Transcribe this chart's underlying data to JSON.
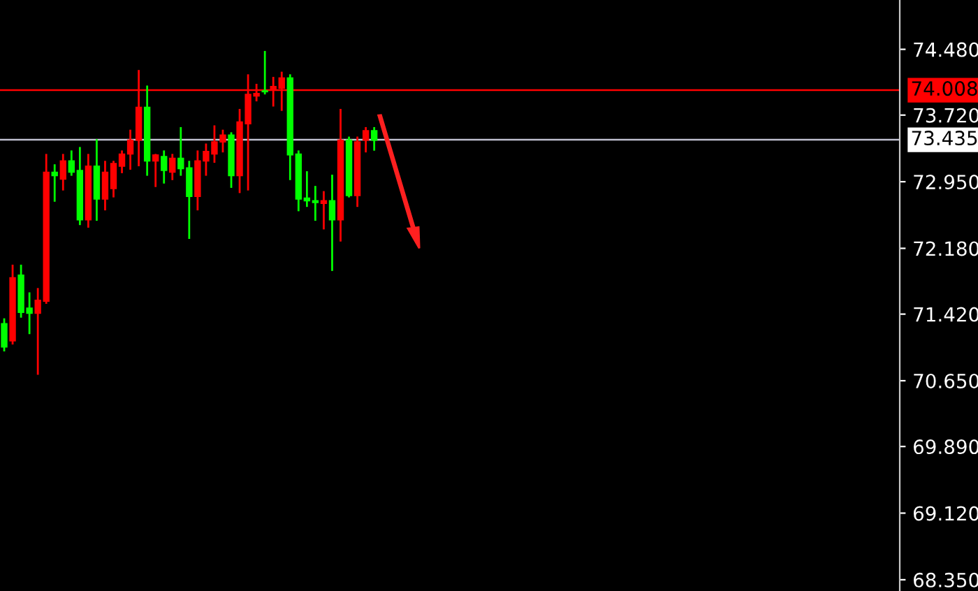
{
  "chart_data": {
    "type": "candlestick",
    "categories": [
      null,
      null,
      null,
      null,
      null,
      null,
      null,
      null,
      null,
      null,
      null,
      null,
      null,
      null,
      null,
      null,
      null,
      null,
      null,
      null,
      null,
      null,
      null,
      null,
      null,
      null,
      null,
      null,
      null,
      null,
      null,
      null,
      null,
      null,
      null,
      null,
      null,
      null,
      null,
      null,
      null,
      null,
      null,
      null,
      null,
      null,
      null,
      null,
      null,
      null,
      null,
      null,
      null,
      null,
      null,
      null,
      null,
      null,
      null,
      null,
      null,
      null,
      null,
      null,
      null,
      null,
      null,
      null,
      null,
      null,
      null,
      null,
      null,
      null,
      null,
      null,
      null,
      null,
      null,
      null,
      null,
      null,
      null,
      null,
      null,
      null,
      null,
      null,
      null,
      null,
      null,
      null,
      null,
      null,
      null,
      null,
      null,
      null,
      null,
      null,
      null,
      null,
      null,
      null,
      null,
      null,
      null
    ],
    "ohlc": [
      [
        71.31,
        71.36,
        71.0,
        71.04
      ],
      [
        71.11,
        71.98,
        71.08,
        71.84
      ],
      [
        71.87,
        71.98,
        71.39,
        71.44
      ],
      [
        71.49,
        71.66,
        71.2,
        71.43
      ],
      [
        71.43,
        71.71,
        70.73,
        71.58
      ],
      [
        71.57,
        73.26,
        71.55,
        73.06
      ],
      [
        73.06,
        73.14,
        72.73,
        73.02
      ],
      [
        72.98,
        73.26,
        72.86,
        73.19
      ],
      [
        73.19,
        73.3,
        73.03,
        73.06
      ],
      [
        73.08,
        73.34,
        72.46,
        72.51
      ],
      [
        72.51,
        73.26,
        72.43,
        73.13
      ],
      [
        73.13,
        73.43,
        72.51,
        72.75
      ],
      [
        72.75,
        73.18,
        72.63,
        73.06
      ],
      [
        72.87,
        73.18,
        72.78,
        73.16
      ],
      [
        73.13,
        73.3,
        73.06,
        73.27
      ],
      [
        73.27,
        73.54,
        73.1,
        73.43
      ],
      [
        73.43,
        74.23,
        73.14,
        73.81
      ],
      [
        73.81,
        74.05,
        73.03,
        73.19
      ],
      [
        73.19,
        73.26,
        72.9,
        73.26
      ],
      [
        73.24,
        73.3,
        72.94,
        73.08
      ],
      [
        73.06,
        73.26,
        72.98,
        73.22
      ],
      [
        73.22,
        73.57,
        73.03,
        73.1
      ],
      [
        73.11,
        73.18,
        72.3,
        72.78
      ],
      [
        72.78,
        73.3,
        72.63,
        73.19
      ],
      [
        73.19,
        73.38,
        73.03,
        73.3
      ],
      [
        73.27,
        73.59,
        73.18,
        73.41
      ],
      [
        73.41,
        73.54,
        73.3,
        73.49
      ],
      [
        73.49,
        73.51,
        72.89,
        73.02
      ],
      [
        73.02,
        73.78,
        72.83,
        73.64
      ],
      [
        73.62,
        74.18,
        72.86,
        73.96
      ],
      [
        73.94,
        74.07,
        73.89,
        73.97
      ],
      [
        74.0,
        74.45,
        73.97,
        73.99
      ],
      [
        74.02,
        74.15,
        73.83,
        74.05
      ],
      [
        74.03,
        74.21,
        73.78,
        74.15
      ],
      [
        74.15,
        74.18,
        72.98,
        73.26
      ],
      [
        73.27,
        73.3,
        72.62,
        72.75
      ],
      [
        72.76,
        73.06,
        72.67,
        72.73
      ],
      [
        72.73,
        72.89,
        72.51,
        72.71
      ],
      [
        72.7,
        72.83,
        72.41,
        72.73
      ],
      [
        72.73,
        73.02,
        71.93,
        72.51
      ],
      [
        72.51,
        73.78,
        72.27,
        73.43
      ],
      [
        73.43,
        73.46,
        72.78,
        72.79
      ],
      [
        72.79,
        73.46,
        72.67,
        73.41
      ],
      [
        73.43,
        73.57,
        73.3,
        73.54
      ],
      [
        73.54,
        73.57,
        73.32,
        73.43
      ],
      null,
      null,
      null,
      null,
      null,
      null,
      null,
      null,
      null,
      null,
      null,
      null,
      null,
      null,
      null,
      null,
      null,
      null,
      null,
      null,
      null,
      null,
      null,
      null,
      null,
      null,
      null,
      null,
      null,
      null,
      null,
      null,
      null,
      null,
      null,
      null,
      null,
      null,
      null,
      null,
      null,
      null,
      null,
      null,
      null,
      null,
      null,
      null,
      null,
      null,
      null,
      null,
      null,
      null,
      null,
      null,
      null,
      null,
      null,
      null,
      null,
      null
    ],
    "colors": [
      "#00ff00",
      "#ff0000",
      "#00ff00",
      "#00ff00",
      "#ff0000",
      "#ff0000",
      "#00ff00",
      "#ff0000",
      "#00ff00",
      "#00ff00",
      "#ff0000",
      "#00ff00",
      "#ff0000",
      "#ff0000",
      "#ff0000",
      "#ff0000",
      "#ff0000",
      "#00ff00",
      "#ff0000",
      "#00ff00",
      "#ff0000",
      "#00ff00",
      "#00ff00",
      "#ff0000",
      "#ff0000",
      "#ff0000",
      "#ff0000",
      "#00ff00",
      "#ff0000",
      "#ff0000",
      "#ff0000",
      "#00ff00",
      "#ff0000",
      "#ff0000",
      "#00ff00",
      "#00ff00",
      "#00ff00",
      "#00ff00",
      "#ff0000",
      "#00ff00",
      "#ff0000",
      "#00ff00",
      "#ff0000",
      "#ff0000",
      "#00ff00",
      null,
      null,
      null,
      null,
      null,
      null,
      null,
      null,
      null,
      null,
      null,
      null,
      null,
      null,
      null,
      null,
      null,
      null,
      null,
      null,
      null,
      null,
      null,
      null,
      null,
      null,
      null,
      null,
      null,
      null,
      null,
      null,
      null,
      null,
      null,
      null,
      null,
      null,
      null,
      null,
      null,
      null,
      null,
      null,
      null,
      null,
      null,
      null,
      null,
      null,
      null,
      null,
      null,
      null,
      null,
      null,
      null,
      null,
      null,
      null,
      null,
      null
    ],
    "ylim": [
      68.22,
      75.05
    ],
    "yticks": [
      {
        "value": 74.48,
        "label": "74.480"
      },
      {
        "value": 73.72,
        "label": "73.720"
      },
      {
        "value": 72.95,
        "label": "72.950"
      },
      {
        "value": 72.18,
        "label": "72.180"
      },
      {
        "value": 71.42,
        "label": "71.420"
      },
      {
        "value": 70.65,
        "label": "70.650"
      },
      {
        "value": 69.89,
        "label": "69.890"
      },
      {
        "value": 69.12,
        "label": "69.120"
      },
      {
        "value": 68.35,
        "label": "68.350"
      }
    ],
    "ref_lines": [
      {
        "axis": "y",
        "value": 74.008,
        "label": "74.008",
        "color": "#ff0000"
      },
      {
        "axis": "y",
        "value": 73.435,
        "label": "73.435",
        "color": "#c0c0d0"
      }
    ],
    "tick_labels": "y"
  }
}
